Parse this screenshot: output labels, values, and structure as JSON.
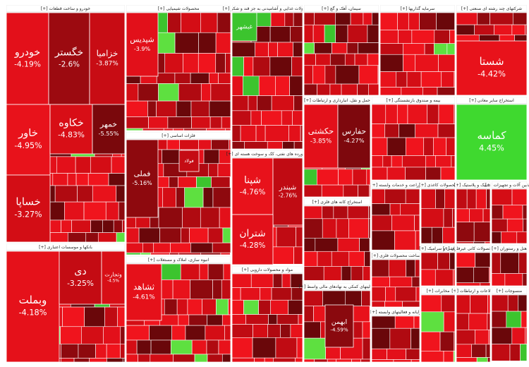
{
  "sectors": [
    {
      "title": "[+] خودرو و ساخت قطعات",
      "tiles": [
        {
          "label": "خودرو",
          "change": "-4.19%",
          "color": "#e3101a"
        },
        {
          "label": "خگستر",
          "change": "-2.6%",
          "color": "#9c0a10"
        },
        {
          "label": "خزامیا",
          "change": "-3.87%",
          "color": "#c80c14"
        },
        {
          "label": "خاور",
          "change": "-4.95%",
          "color": "#e8121b"
        },
        {
          "label": "خکاوه",
          "change": "-4.83%",
          "color": "#d80e16"
        },
        {
          "label": "خساپا",
          "change": "-3.27%",
          "color": "#d30d15"
        },
        {
          "label": "خمهر",
          "change": "-5.55%",
          "color": "#7a080c"
        }
      ]
    },
    {
      "title": "[+] بانکها و موسسات اعتباری",
      "tiles": [
        {
          "label": "وبملت",
          "change": "-4.18%",
          "color": "#e5111a"
        },
        {
          "label": "دی",
          "change": "-3.25%",
          "color": "#c40b13"
        },
        {
          "label": "وتجارت",
          "change": "-4.5%",
          "color": "#d80e16"
        }
      ]
    },
    {
      "title": "[+] محصولات شیمیایی",
      "tiles": [
        {
          "label": "شپدیس",
          "change": "-3.9%",
          "color": "#e2101a"
        }
      ]
    },
    {
      "title": "[+] فلزات اساسی",
      "tiles": [
        {
          "label": "فملی",
          "change": "-5.16%",
          "color": "#8e090e"
        },
        {
          "label": "فولاد",
          "color": "#c50c14"
        }
      ]
    },
    {
      "title": "[+] انبوه سازی، املاک و مستغلات",
      "tiles": [
        {
          "label": "ثشاهد",
          "change": "-4.61%",
          "color": "#e5111a"
        }
      ]
    },
    {
      "title": "[+] محصولات غذایی و آشامیدنی به جز قند و شکر",
      "tiles": [
        {
          "label": "غبشهر",
          "color": "#3cc42e"
        }
      ]
    },
    {
      "title": "[+] فراورده های نفتی، کک و سوخت هسته ای",
      "tiles": [
        {
          "label": "شپنا",
          "change": "-4.76%",
          "color": "#e8121b"
        },
        {
          "label": "شبندر",
          "change": "-2.76%",
          "color": "#c00b13"
        },
        {
          "label": "شتران",
          "change": "-4.28%",
          "color": "#e2101a"
        }
      ]
    },
    {
      "title": "[+] مواد و محصولات دارویی",
      "tiles": []
    },
    {
      "title": "[+] سیمان، آهک و گچ",
      "tiles": []
    },
    {
      "title": "[+] حمل و نقل، انبارداری و ارتباطات",
      "tiles": [
        {
          "label": "حکشتی",
          "change": "-3.85%",
          "color": "#e3101a"
        },
        {
          "label": "حفارس",
          "change": "-4.27%",
          "color": "#7e080d"
        }
      ]
    },
    {
      "title": "[+] استخراج کانه های فلزی",
      "tiles": []
    },
    {
      "title": "[+] فعالیتهای کمکی به نهادهای مالی واسط",
      "tiles": [
        {
          "label": "ابهمن",
          "change": "-4.59%",
          "color": "#8a090e"
        }
      ]
    },
    {
      "title": "[+] سرمایه گذاریها",
      "tiles": []
    },
    {
      "title": "[+] شرکتهای چند رشته ای صنعتی",
      "tiles": [
        {
          "label": "شستا",
          "change": "-4.42%",
          "color": "#e8121b"
        }
      ]
    },
    {
      "title": "[+] بیمه و صندوق بازنشستگی",
      "tiles": []
    },
    {
      "title": "[+] استخراج سایر معادن",
      "tiles": [
        {
          "label": "کماسه",
          "change": "4.45%",
          "color": "#3fd92f"
        }
      ]
    },
    {
      "title": "[+] زراعت و خدمات وابسته",
      "tiles": []
    },
    {
      "title": "[+] محصولات کاغذی",
      "tiles": []
    },
    {
      "title": "[+] لاستیک و پلاستیک",
      "tiles": []
    },
    {
      "title": "[+] ماشین آلات و تجهیزات",
      "tiles": []
    },
    {
      "title": "[+] ساخت محصولات فلزی",
      "tiles": []
    },
    {
      "title": "[+] کاشی و سرامیک",
      "tiles": []
    },
    {
      "title": "[+] سایر محصولات کانی غیرفلزی",
      "tiles": []
    },
    {
      "title": "[+] هتل و رستوران",
      "tiles": []
    },
    {
      "title": "[+] رایانه و فعالیتهای وابسته",
      "tiles": []
    },
    {
      "title": "[+] مخابرات",
      "tiles": []
    },
    {
      "title": "[+] اطلاعات و ارتباطات",
      "tiles": []
    },
    {
      "title": "[+] منسوجات",
      "tiles": []
    }
  ]
}
